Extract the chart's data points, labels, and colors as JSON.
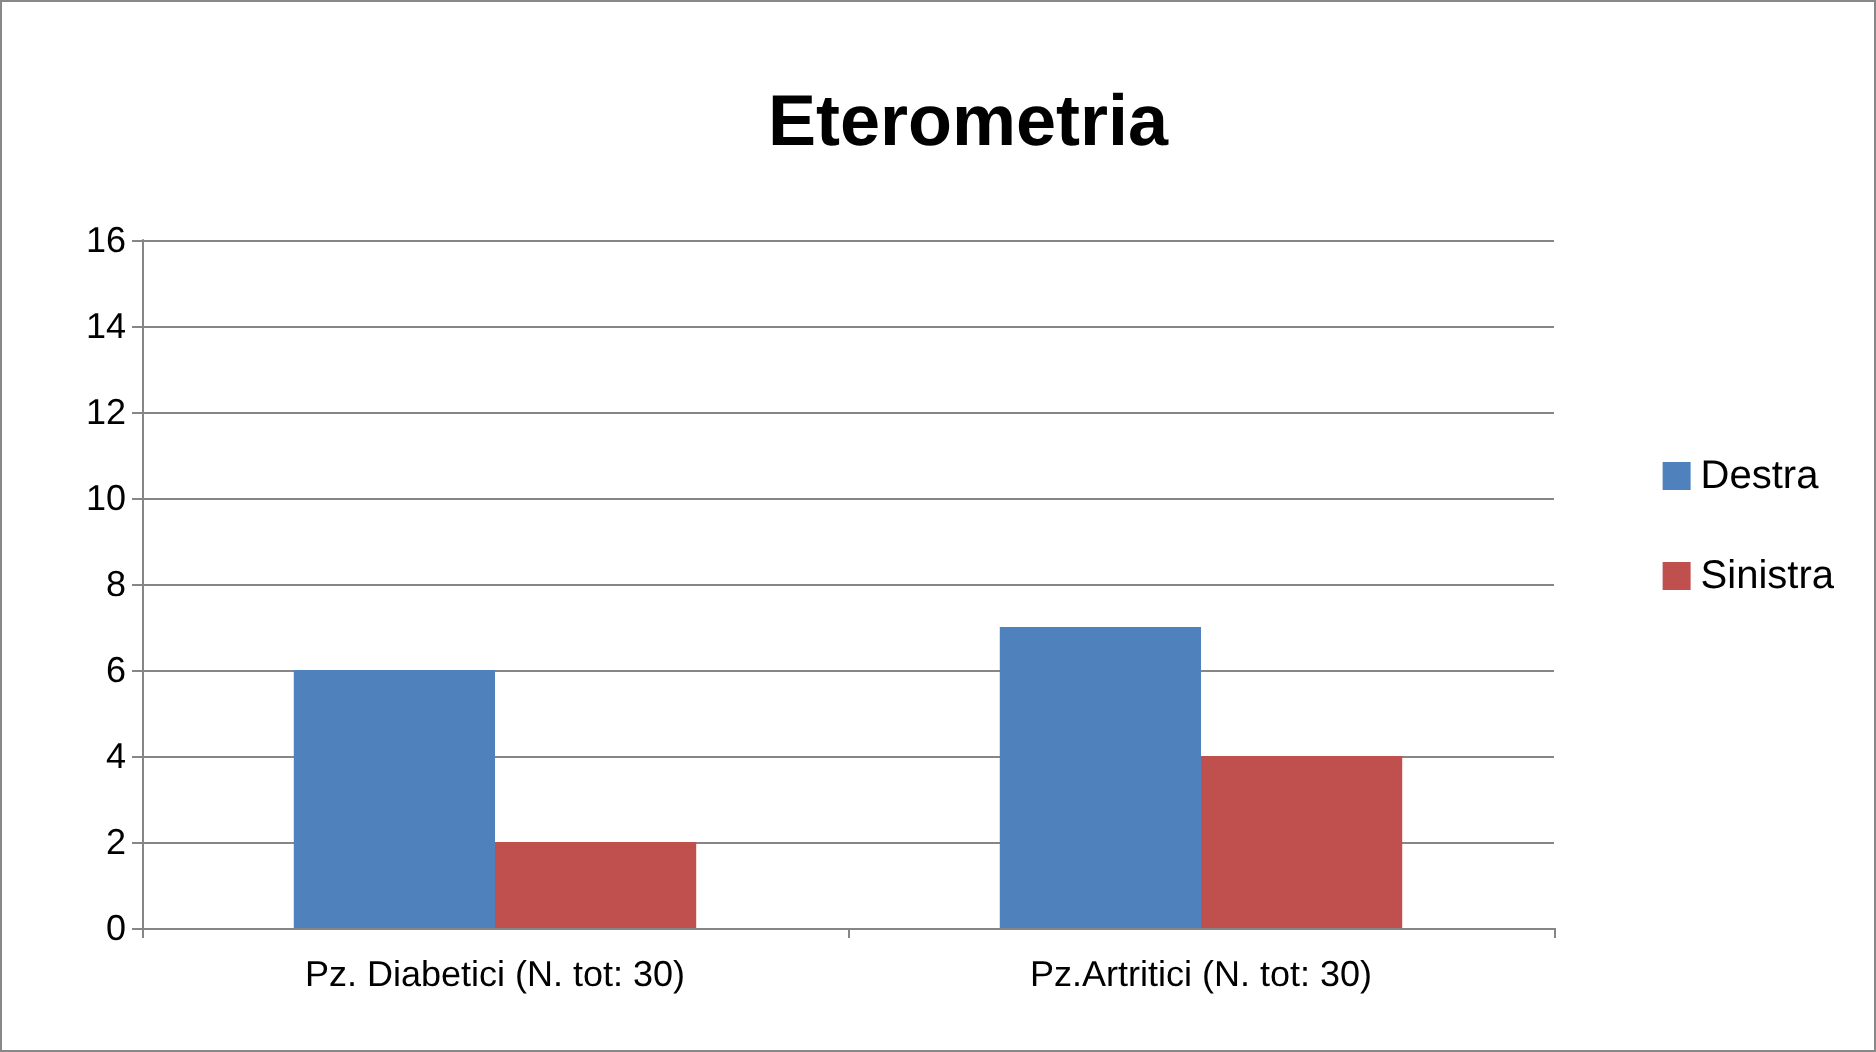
{
  "chart_data": {
    "type": "bar",
    "title": "Eterometria",
    "categories": [
      "Pz. Diabetici (N. tot: 30)",
      "Pz.Artritici (N. tot: 30)"
    ],
    "series": [
      {
        "name": "Destra",
        "color": "#4f81bd",
        "values": [
          6,
          7
        ]
      },
      {
        "name": "Sinistra",
        "color": "#c0504d",
        "values": [
          2,
          4
        ]
      }
    ],
    "ylim": [
      0,
      16
    ],
    "yticks": [
      0,
      2,
      4,
      6,
      8,
      10,
      12,
      14,
      16
    ],
    "grid": "y",
    "legend": "right"
  }
}
